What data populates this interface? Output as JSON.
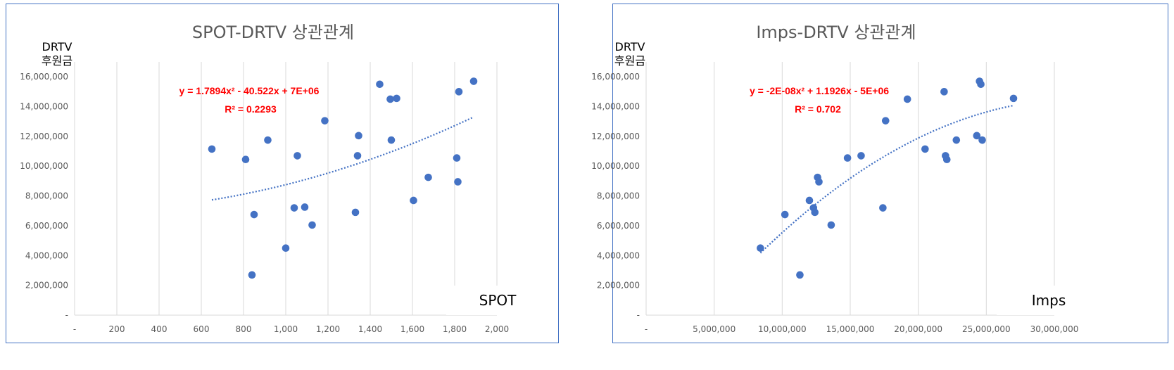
{
  "chart_data": [
    {
      "type": "scatter",
      "title": "SPOT-DRTV 상관관계",
      "xlabel": "SPOT",
      "ylabel_lines": [
        "DRTV",
        "후원금"
      ],
      "xlim": [
        0,
        2000
      ],
      "ylim": [
        0,
        17000000
      ],
      "x_ticks": [
        "-",
        "200",
        "400",
        "600",
        "800",
        "1,000",
        "1,200",
        "1,400",
        "1,600",
        "1,800",
        "2,000"
      ],
      "y_ticks": [
        "-",
        "2,000,000",
        "4,000,000",
        "6,000,000",
        "8,000,000",
        "10,000,000",
        "12,000,000",
        "14,000,000",
        "16,000,000"
      ],
      "grid": "vertical",
      "marker_color": "#4472c4",
      "trendline": {
        "type": "polynomial-2",
        "x_range": [
          650,
          1890
        ],
        "equation": "y = 1.7894x² - 40.522x + 7E+06",
        "r2": "R² = 0.2293",
        "color": "#ff0000"
      },
      "points": [
        {
          "x": 650,
          "y": 11150000
        },
        {
          "x": 810,
          "y": 10450000
        },
        {
          "x": 840,
          "y": 2700000
        },
        {
          "x": 850,
          "y": 6750000
        },
        {
          "x": 915,
          "y": 11750000
        },
        {
          "x": 1000,
          "y": 4500000
        },
        {
          "x": 1040,
          "y": 7200000
        },
        {
          "x": 1055,
          "y": 10700000
        },
        {
          "x": 1090,
          "y": 7250000
        },
        {
          "x": 1125,
          "y": 6050000
        },
        {
          "x": 1185,
          "y": 13050000
        },
        {
          "x": 1330,
          "y": 6900000
        },
        {
          "x": 1340,
          "y": 10700000
        },
        {
          "x": 1345,
          "y": 12050000
        },
        {
          "x": 1445,
          "y": 15500000
        },
        {
          "x": 1495,
          "y": 14500000
        },
        {
          "x": 1500,
          "y": 11750000
        },
        {
          "x": 1525,
          "y": 14550000
        },
        {
          "x": 1605,
          "y": 7700000
        },
        {
          "x": 1675,
          "y": 9250000
        },
        {
          "x": 1810,
          "y": 10550000
        },
        {
          "x": 1815,
          "y": 8950000
        },
        {
          "x": 1820,
          "y": 15000000
        },
        {
          "x": 1890,
          "y": 15700000
        }
      ]
    },
    {
      "type": "scatter",
      "title": "Imps-DRTV 상관관계",
      "xlabel": "Imps",
      "ylabel_lines": [
        "DRTV",
        "후원금"
      ],
      "xlim": [
        0,
        30000000
      ],
      "ylim": [
        0,
        17000000
      ],
      "x_ticks": [
        "-",
        "5,000,000",
        "10,000,000",
        "15,000,000",
        "20,000,000",
        "25,000,000",
        "30,000,000"
      ],
      "y_ticks": [
        "-",
        "2,000,000",
        "4,000,000",
        "6,000,000",
        "8,000,000",
        "10,000,000",
        "12,000,000",
        "14,000,000",
        "16,000,000"
      ],
      "grid": "vertical",
      "marker_color": "#4472c4",
      "trendline": {
        "type": "polynomial-2",
        "x_range": [
          8400000,
          27000000
        ],
        "equation": "y = -2E-08x² + 1.1926x - 5E+06",
        "r2": "R² = 0.702",
        "color": "#ff0000"
      },
      "points": [
        {
          "x": 8400000,
          "y": 4500000
        },
        {
          "x": 10200000,
          "y": 6750000
        },
        {
          "x": 11300000,
          "y": 2700000
        },
        {
          "x": 12000000,
          "y": 7700000
        },
        {
          "x": 12300000,
          "y": 7200000
        },
        {
          "x": 12400000,
          "y": 6900000
        },
        {
          "x": 12600000,
          "y": 9250000
        },
        {
          "x": 12700000,
          "y": 8950000
        },
        {
          "x": 13600000,
          "y": 6050000
        },
        {
          "x": 14800000,
          "y": 10550000
        },
        {
          "x": 15800000,
          "y": 10700000
        },
        {
          "x": 17400000,
          "y": 7200000
        },
        {
          "x": 17600000,
          "y": 13050000
        },
        {
          "x": 19200000,
          "y": 14500000
        },
        {
          "x": 20500000,
          "y": 11150000
        },
        {
          "x": 21900000,
          "y": 15000000
        },
        {
          "x": 22000000,
          "y": 10700000
        },
        {
          "x": 22100000,
          "y": 10450000
        },
        {
          "x": 22800000,
          "y": 11750000
        },
        {
          "x": 24300000,
          "y": 12050000
        },
        {
          "x": 24500000,
          "y": 15700000
        },
        {
          "x": 24600000,
          "y": 15500000
        },
        {
          "x": 24700000,
          "y": 11750000
        },
        {
          "x": 27000000,
          "y": 14550000
        }
      ]
    }
  ]
}
